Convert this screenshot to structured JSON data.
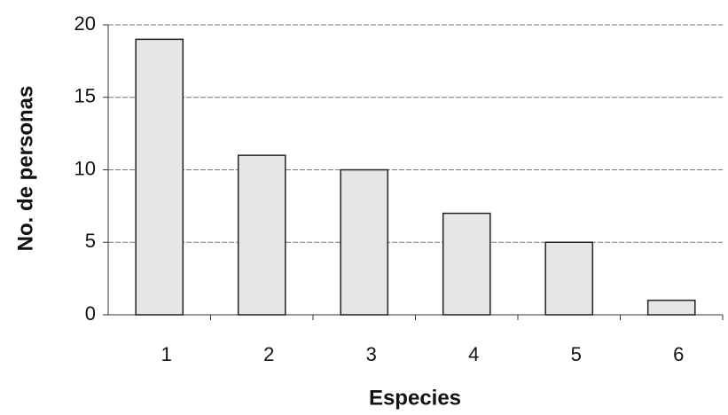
{
  "chart_data": {
    "type": "bar",
    "categories": [
      "1",
      "2",
      "3",
      "4",
      "5",
      "6"
    ],
    "values": [
      19,
      11,
      10,
      7,
      5,
      1
    ],
    "color": "#e6e6e6",
    "ylim": [
      0,
      20
    ],
    "yticks": [
      0,
      5,
      10,
      15,
      20
    ],
    "grid": true,
    "x_label": "Especies",
    "y_label": "No. de personas"
  }
}
